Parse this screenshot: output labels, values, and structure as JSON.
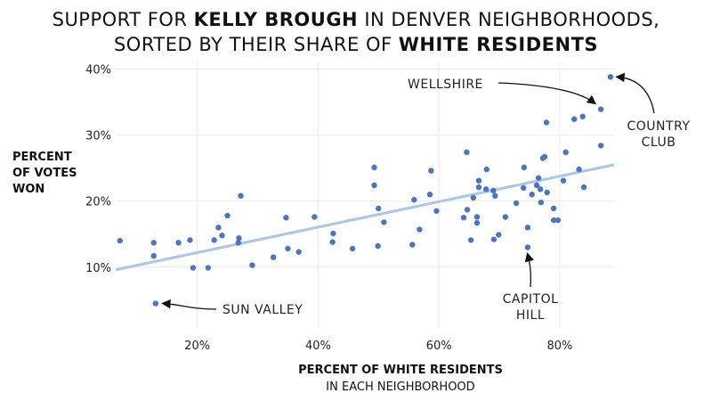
{
  "title": {
    "line1_pre": "SUPPORT FOR ",
    "line1_bold": "KELLY BROUGH",
    "line1_post": " IN DENVER NEIGHBORHOODS,",
    "line2_pre": "SORTED BY THEIR SHARE OF ",
    "line2_bold": "WHITE RESIDENTS"
  },
  "chart_data": {
    "type": "scatter",
    "xlabel": "PERCENT OF WHITE RESIDENTS",
    "xlabel_sub": "IN EACH NEIGHBORHOOD",
    "ylabel": [
      "PERCENT",
      "OF VOTES",
      "WON"
    ],
    "xlim": [
      6.5,
      89
    ],
    "ylim": [
      0.8,
      41
    ],
    "xticks": [
      {
        "v": 20,
        "label": "20%"
      },
      {
        "v": 40,
        "label": "40%"
      },
      {
        "v": 60,
        "label": "60%"
      },
      {
        "v": 80,
        "label": "80%"
      }
    ],
    "yticks": [
      {
        "v": 10,
        "label": "10%"
      },
      {
        "v": 20,
        "label": "20%"
      },
      {
        "v": 30,
        "label": "30%"
      },
      {
        "v": 40,
        "label": "40%"
      }
    ],
    "grid": true,
    "point_color": "#4a74c4",
    "trend_color": "#a9c6ec",
    "trendline": [
      [
        6.5,
        9.6
      ],
      [
        89,
        25.5
      ]
    ],
    "points": [
      [
        7.2,
        14.0
      ],
      [
        12.8,
        13.7
      ],
      [
        12.8,
        11.7
      ],
      [
        13.1,
        4.5
      ],
      [
        16.9,
        13.7
      ],
      [
        18.8,
        14.1
      ],
      [
        19.3,
        9.9
      ],
      [
        21.8,
        9.9
      ],
      [
        22.8,
        14.1
      ],
      [
        23.5,
        16.0
      ],
      [
        24.1,
        14.8
      ],
      [
        25.0,
        17.8
      ],
      [
        26.8,
        13.7
      ],
      [
        26.9,
        14.4
      ],
      [
        27.2,
        20.8
      ],
      [
        29.1,
        10.3
      ],
      [
        32.6,
        11.5
      ],
      [
        34.7,
        17.5
      ],
      [
        35.0,
        12.8
      ],
      [
        36.8,
        12.3
      ],
      [
        39.4,
        17.6
      ],
      [
        42.5,
        15.1
      ],
      [
        42.4,
        13.8
      ],
      [
        45.7,
        12.8
      ],
      [
        49.3,
        22.4
      ],
      [
        49.3,
        25.1
      ],
      [
        50.0,
        18.9
      ],
      [
        50.9,
        16.8
      ],
      [
        49.9,
        13.2
      ],
      [
        55.9,
        20.2
      ],
      [
        58.7,
        24.6
      ],
      [
        58.5,
        21.0
      ],
      [
        59.6,
        18.5
      ],
      [
        56.8,
        15.7
      ],
      [
        55.6,
        13.4
      ],
      [
        64.6,
        27.4
      ],
      [
        67.9,
        24.8
      ],
      [
        66.6,
        23.1
      ],
      [
        66.6,
        22.1
      ],
      [
        67.8,
        21.8
      ],
      [
        69.0,
        21.6
      ],
      [
        69.3,
        20.8
      ],
      [
        65.7,
        20.5
      ],
      [
        64.7,
        18.7
      ],
      [
        64.1,
        17.5
      ],
      [
        66.3,
        17.6
      ],
      [
        66.3,
        16.7
      ],
      [
        65.3,
        14.1
      ],
      [
        69.1,
        14.2
      ],
      [
        69.9,
        14.9
      ],
      [
        71.0,
        17.6
      ],
      [
        72.8,
        19.7
      ],
      [
        74.1,
        25.1
      ],
      [
        74.0,
        22.0
      ],
      [
        75.4,
        21.0
      ],
      [
        76.2,
        22.4
      ],
      [
        76.5,
        23.5
      ],
      [
        76.8,
        21.8
      ],
      [
        77.9,
        21.3
      ],
      [
        76.9,
        19.8
      ],
      [
        77.2,
        26.5
      ],
      [
        77.5,
        26.7
      ],
      [
        79.0,
        18.9
      ],
      [
        79.0,
        17.1
      ],
      [
        79.7,
        17.1
      ],
      [
        74.7,
        16.0
      ],
      [
        74.7,
        13.0
      ],
      [
        81.0,
        27.4
      ],
      [
        80.6,
        23.1
      ],
      [
        83.2,
        24.8
      ],
      [
        84.0,
        22.1
      ],
      [
        86.8,
        28.4
      ],
      [
        88.4,
        38.8
      ],
      [
        86.8,
        33.9
      ],
      [
        83.8,
        32.8
      ],
      [
        82.4,
        32.4
      ],
      [
        77.8,
        31.9
      ]
    ],
    "annotations": [
      {
        "label": "WELLSHIRE",
        "point": [
          86.8,
          33.9
        ]
      },
      {
        "label": "COUNTRY",
        "label2": "CLUB",
        "point": [
          88.4,
          38.8
        ]
      },
      {
        "label": "SUN VALLEY",
        "point": [
          13.1,
          4.5
        ]
      },
      {
        "label": "CAPITOL",
        "label2": "HILL",
        "point": [
          74.7,
          13.0
        ]
      }
    ]
  }
}
